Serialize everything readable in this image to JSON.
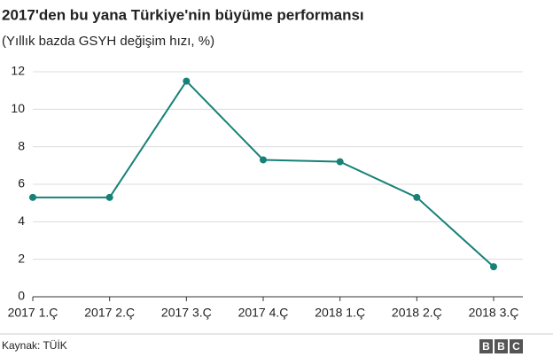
{
  "chart_data": {
    "type": "line",
    "title": "2017'den bu yana Türkiye'nin büyüme performansı",
    "subtitle": "(Yıllık bazda GSYH değişim hızı, %)",
    "categories": [
      "2017 1.Ç",
      "2017 2.Ç",
      "2017 3.Ç",
      "2017 4.Ç",
      "2018 1.Ç",
      "2018 2.Ç",
      "2018 3.Ç"
    ],
    "values": [
      5.3,
      5.3,
      11.5,
      7.3,
      7.2,
      5.3,
      1.6
    ],
    "color": "#178077",
    "ylim": [
      0,
      12
    ],
    "yticks": [
      0,
      2,
      4,
      6,
      8,
      10,
      12
    ],
    "grid": true,
    "source": "Kaynak: TÜİK",
    "logo": [
      "B",
      "B",
      "C"
    ]
  }
}
